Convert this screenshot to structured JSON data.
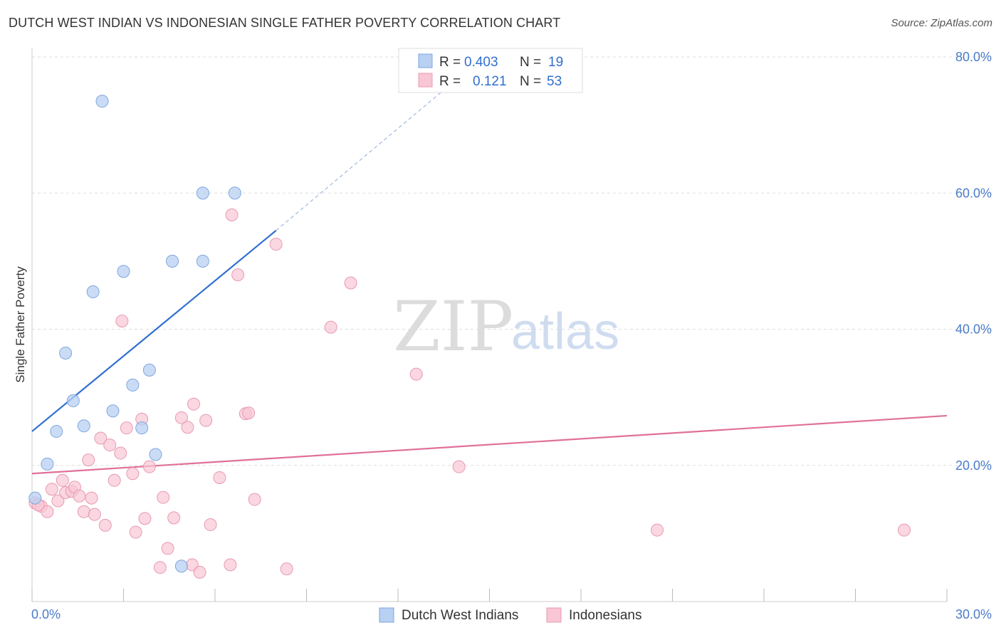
{
  "title": "DUTCH WEST INDIAN VS INDONESIAN SINGLE FATHER POVERTY CORRELATION CHART",
  "source": "Source: ZipAtlas.com",
  "watermark": {
    "zip": "ZIP",
    "atlas": "atlas"
  },
  "colors": {
    "blue_fill": "#b8d0f2",
    "blue_stroke": "#7ea6e0",
    "blue_line": "#2f6fd0",
    "pink_fill": "#f8c6d4",
    "pink_stroke": "#e89ab2",
    "pink_line": "#e0709a",
    "grid": "#dddddd",
    "tick_text": "#4a7cc9"
  },
  "legend": {
    "rows": [
      {
        "r_label": "R =",
        "r_value": "0.403",
        "n_label": "N =",
        "n_value": "19"
      },
      {
        "r_label": "R =",
        "r_value": "0.121",
        "n_label": "N =",
        "n_value": "53"
      }
    ]
  },
  "chart_data": {
    "type": "scatter",
    "title": "DUTCH WEST INDIAN VS INDONESIAN SINGLE FATHER POVERTY CORRELATION CHART",
    "xlabel": "",
    "ylabel": "Single Father Poverty",
    "xlim": [
      0,
      30
    ],
    "ylim": [
      0,
      80
    ],
    "x_tick_labels": [
      "0.0%",
      "30.0%"
    ],
    "y_tick_labels": [
      "20.0%",
      "40.0%",
      "60.0%",
      "80.0%"
    ],
    "y_ticks": [
      20,
      40,
      60,
      80
    ],
    "grid": true,
    "legend_position": "top-center",
    "series": [
      {
        "name": "Dutch West Indians",
        "color": "#b8d0f2",
        "r": "0.403",
        "n": "19",
        "trend": {
          "x0": 0,
          "y0": 25.0,
          "x1": 8.0,
          "y1": 54.5,
          "dash_to_x": 14.0,
          "dash_to_y": 77.0
        },
        "points": [
          [
            0.1,
            15.2
          ],
          [
            0.5,
            20.2
          ],
          [
            0.8,
            25.0
          ],
          [
            1.1,
            36.5
          ],
          [
            1.35,
            29.5
          ],
          [
            1.7,
            25.8
          ],
          [
            2.0,
            45.5
          ],
          [
            2.3,
            73.5
          ],
          [
            2.65,
            28.0
          ],
          [
            3.0,
            48.5
          ],
          [
            3.3,
            31.8
          ],
          [
            3.6,
            25.5
          ],
          [
            3.85,
            34.0
          ],
          [
            4.05,
            21.6
          ],
          [
            4.6,
            50.0
          ],
          [
            4.9,
            5.2
          ],
          [
            5.6,
            50.0
          ],
          [
            5.6,
            60.0
          ],
          [
            6.65,
            60.0
          ]
        ]
      },
      {
        "name": "Indonesians",
        "color": "#f8c6d4",
        "r": "0.121",
        "n": "53",
        "trend": {
          "x0": 0,
          "y0": 18.8,
          "x1": 30,
          "y1": 27.3
        },
        "points": [
          [
            0.1,
            14.5
          ],
          [
            0.3,
            14.0
          ],
          [
            0.5,
            13.2
          ],
          [
            0.65,
            16.5
          ],
          [
            0.85,
            14.8
          ],
          [
            1.0,
            17.8
          ],
          [
            1.1,
            16.0
          ],
          [
            1.3,
            16.2
          ],
          [
            1.4,
            16.8
          ],
          [
            1.55,
            15.5
          ],
          [
            1.7,
            13.2
          ],
          [
            1.85,
            20.8
          ],
          [
            1.95,
            15.2
          ],
          [
            2.05,
            12.8
          ],
          [
            2.25,
            24.0
          ],
          [
            2.4,
            11.2
          ],
          [
            2.55,
            23.0
          ],
          [
            2.7,
            17.8
          ],
          [
            2.9,
            21.8
          ],
          [
            2.95,
            41.2
          ],
          [
            3.1,
            25.5
          ],
          [
            3.3,
            18.8
          ],
          [
            3.4,
            10.2
          ],
          [
            3.6,
            26.8
          ],
          [
            3.7,
            12.2
          ],
          [
            3.85,
            19.8
          ],
          [
            4.2,
            5.0
          ],
          [
            4.3,
            15.3
          ],
          [
            4.45,
            7.8
          ],
          [
            4.65,
            12.3
          ],
          [
            4.9,
            27.0
          ],
          [
            5.1,
            25.6
          ],
          [
            5.25,
            5.4
          ],
          [
            5.3,
            29.0
          ],
          [
            5.5,
            4.3
          ],
          [
            5.7,
            26.6
          ],
          [
            5.85,
            11.3
          ],
          [
            6.15,
            18.2
          ],
          [
            6.5,
            5.4
          ],
          [
            6.55,
            56.8
          ],
          [
            6.75,
            48.0
          ],
          [
            7.0,
            27.6
          ],
          [
            7.1,
            27.7
          ],
          [
            7.3,
            15.0
          ],
          [
            8.0,
            52.5
          ],
          [
            8.35,
            4.8
          ],
          [
            9.8,
            40.3
          ],
          [
            10.45,
            46.8
          ],
          [
            12.6,
            33.4
          ],
          [
            14.0,
            19.8
          ],
          [
            20.5,
            10.5
          ],
          [
            28.6,
            10.5
          ],
          [
            0.2,
            14.2
          ]
        ]
      }
    ]
  },
  "bottom_legend": [
    {
      "label": "Dutch West Indians"
    },
    {
      "label": "Indonesians"
    }
  ]
}
